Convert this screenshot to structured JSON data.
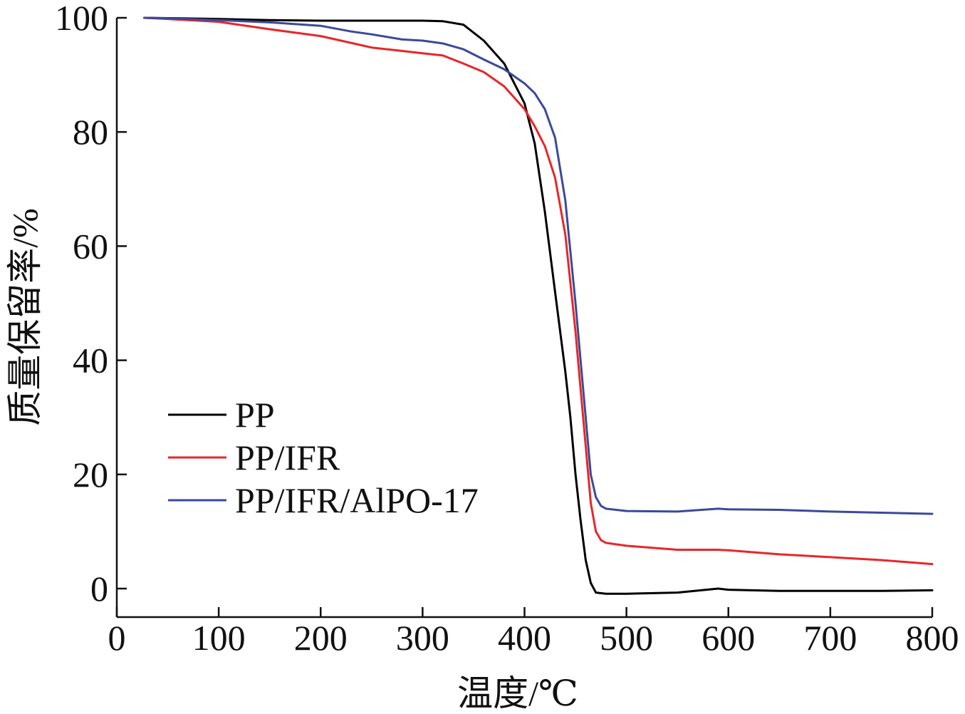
{
  "chart_data": {
    "type": "line",
    "xlabel": "温度/℃",
    "ylabel": "质量保留率/%",
    "xlim": [
      0,
      800
    ],
    "ylim": [
      -5,
      100
    ],
    "x_ticks": [
      0,
      100,
      200,
      300,
      400,
      500,
      600,
      700,
      800
    ],
    "y_ticks": [
      0,
      20,
      40,
      60,
      80,
      100
    ],
    "grid": false,
    "legend_position": "lower-left",
    "series": [
      {
        "name": "PP",
        "color": "#000000",
        "x": [
          27,
          100,
          150,
          200,
          250,
          300,
          320,
          340,
          360,
          380,
          400,
          410,
          420,
          430,
          440,
          445,
          450,
          455,
          460,
          465,
          470,
          480,
          500,
          550,
          590,
          600,
          650,
          700,
          750,
          800
        ],
        "y": [
          100,
          99.8,
          99.6,
          99.5,
          99.5,
          99.5,
          99.4,
          98.8,
          96,
          92,
          85,
          78,
          66,
          52,
          38,
          30,
          20,
          12,
          5,
          1,
          -0.7,
          -0.9,
          -0.9,
          -0.7,
          0,
          -0.2,
          -0.4,
          -0.4,
          -0.4,
          -0.3
        ]
      },
      {
        "name": "PP/IFR",
        "color": "#e8262a",
        "x": [
          27,
          50,
          100,
          150,
          200,
          250,
          280,
          300,
          320,
          340,
          360,
          380,
          400,
          410,
          420,
          430,
          440,
          450,
          455,
          460,
          465,
          470,
          475,
          480,
          500,
          550,
          590,
          600,
          650,
          700,
          750,
          800
        ],
        "y": [
          100,
          99.8,
          99.3,
          98,
          96.8,
          94.8,
          94.2,
          93.8,
          93.4,
          92,
          90.5,
          88,
          84,
          81,
          77.5,
          72,
          62,
          45,
          35,
          25,
          15,
          10,
          8.5,
          8,
          7.5,
          6.8,
          6.8,
          6.7,
          6,
          5.5,
          5,
          4.3
        ]
      },
      {
        "name": "PP/IFR/AlPO-17",
        "color": "#3a4a9a",
        "x": [
          27,
          50,
          100,
          150,
          200,
          230,
          250,
          280,
          300,
          320,
          340,
          360,
          380,
          400,
          410,
          420,
          430,
          440,
          450,
          455,
          460,
          465,
          470,
          475,
          480,
          500,
          550,
          590,
          600,
          650,
          700,
          750,
          800
        ],
        "y": [
          100,
          99.9,
          99.6,
          99.2,
          98.6,
          97.6,
          97.1,
          96.2,
          96,
          95.5,
          94.5,
          92.7,
          91,
          88.5,
          86.8,
          84,
          79,
          68,
          50,
          40,
          30,
          20,
          16,
          14.5,
          14,
          13.6,
          13.5,
          14,
          13.9,
          13.8,
          13.5,
          13.3,
          13.1
        ]
      }
    ]
  }
}
